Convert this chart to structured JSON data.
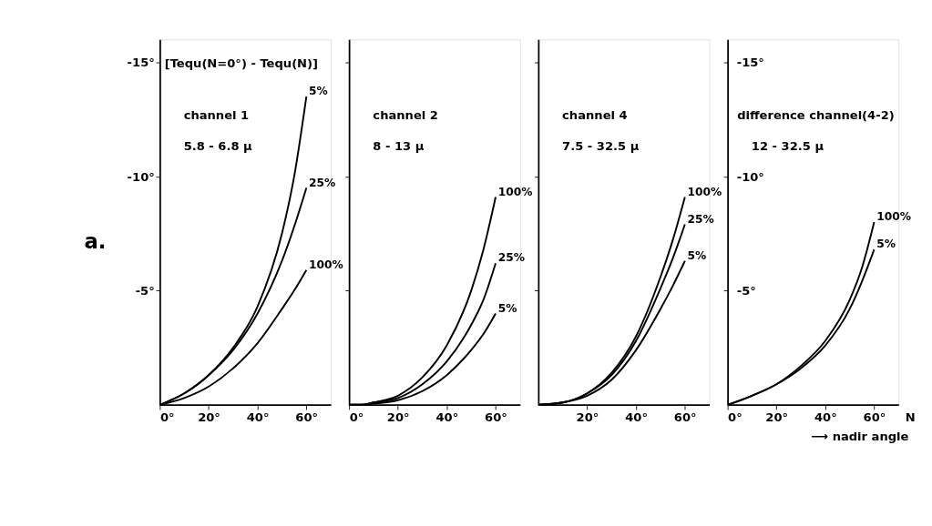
{
  "chart_data": [
    {
      "type": "line",
      "title": "channel 1",
      "subtitle": "5.8 - 6.8 μ",
      "ylabel": "[Tequ(N=0°) - Tequ(N)]",
      "annotations": [
        "a."
      ],
      "x": [
        0,
        10,
        20,
        30,
        40,
        50,
        55,
        60
      ],
      "xlim": [
        0,
        70
      ],
      "ylim": [
        0,
        -16
      ],
      "xticks": [
        {
          "value": 0,
          "label": "0°"
        },
        {
          "value": 20,
          "label": "20°"
        },
        {
          "value": 40,
          "label": "40°"
        },
        {
          "value": 60,
          "label": "60°"
        }
      ],
      "yticks": [
        {
          "value": -5,
          "label": "-5°"
        },
        {
          "value": -10,
          "label": "-10°"
        },
        {
          "value": -15,
          "label": "-15°"
        }
      ],
      "grid": false,
      "legend": false,
      "marker": "none",
      "line_style": "solid",
      "series": [
        {
          "name": "5%",
          "color": "#000000",
          "values": [
            0,
            -0.5,
            -1.3,
            -2.5,
            -4.3,
            -7.5,
            -10,
            -13.5
          ]
        },
        {
          "name": "25%",
          "color": "#000000",
          "values": [
            0,
            -0.5,
            -1.3,
            -2.4,
            -4.0,
            -6.3,
            -7.8,
            -9.5
          ]
        },
        {
          "name": "100%",
          "color": "#000000",
          "values": [
            0,
            -0.3,
            -0.8,
            -1.6,
            -2.7,
            -4.2,
            -5.0,
            -5.9
          ]
        }
      ]
    },
    {
      "type": "line",
      "title": "channel 2",
      "subtitle": "8 - 13 μ",
      "x": [
        0,
        5,
        10,
        20,
        30,
        40,
        50,
        55,
        60
      ],
      "xlim": [
        0,
        70
      ],
      "ylim": [
        0,
        -16
      ],
      "xticks": [
        {
          "value": 0,
          "label": "0°"
        },
        {
          "value": 20,
          "label": "20°"
        },
        {
          "value": 40,
          "label": "40°"
        },
        {
          "value": 60,
          "label": "60°"
        }
      ],
      "yticks": [
        {
          "value": -5,
          "label": null
        },
        {
          "value": -10,
          "label": null
        },
        {
          "value": -15,
          "label": null
        }
      ],
      "tick_labels": "x",
      "grid": false,
      "legend": false,
      "marker": "none",
      "line_style": "solid",
      "series": [
        {
          "name": "100%",
          "color": "#000000",
          "values": [
            0,
            0,
            -0.1,
            -0.4,
            -1.2,
            -2.6,
            -5.0,
            -6.8,
            -9.1
          ]
        },
        {
          "name": "25%",
          "color": "#000000",
          "values": [
            0,
            0,
            -0.1,
            -0.3,
            -0.9,
            -1.9,
            -3.5,
            -4.6,
            -6.2
          ]
        },
        {
          "name": "5%",
          "color": "#000000",
          "values": [
            0,
            0,
            -0.05,
            -0.2,
            -0.6,
            -1.3,
            -2.4,
            -3.1,
            -4.0
          ]
        }
      ]
    },
    {
      "type": "line",
      "title": "channel 4",
      "subtitle": "7.5 - 32.5 μ",
      "x": [
        0,
        10,
        20,
        30,
        40,
        50,
        55,
        60
      ],
      "xlim": [
        0,
        70
      ],
      "ylim": [
        0,
        -16
      ],
      "xticks": [
        {
          "value": 20,
          "label": "20°"
        },
        {
          "value": 40,
          "label": "40°"
        },
        {
          "value": 60,
          "label": "60°"
        }
      ],
      "yticks": [
        {
          "value": -5,
          "label": null
        },
        {
          "value": -10,
          "label": null
        },
        {
          "value": -15,
          "label": null
        }
      ],
      "tick_labels": "x",
      "grid": false,
      "legend": false,
      "marker": "none",
      "line_style": "solid",
      "series": [
        {
          "name": "100%",
          "color": "#000000",
          "values": [
            0,
            -0.1,
            -0.5,
            -1.4,
            -3.0,
            -5.6,
            -7.2,
            -9.1
          ]
        },
        {
          "name": "25%",
          "color": "#000000",
          "values": [
            0,
            -0.1,
            -0.5,
            -1.3,
            -2.8,
            -5.1,
            -6.4,
            -7.9
          ]
        },
        {
          "name": "5%",
          "color": "#000000",
          "values": [
            0,
            -0.1,
            -0.4,
            -1.1,
            -2.4,
            -4.2,
            -5.2,
            -6.3
          ]
        }
      ]
    },
    {
      "type": "line",
      "title": "difference channel(4-2)",
      "subtitle": "12 - 32.5 μ",
      "xlabel": "N",
      "annotations": [
        "⟶ nadir angle"
      ],
      "x": [
        0,
        10,
        20,
        30,
        40,
        50,
        55,
        60
      ],
      "xlim": [
        0,
        70
      ],
      "ylim": [
        0,
        -16
      ],
      "xticks": [
        {
          "value": 0,
          "label": "0°"
        },
        {
          "value": 20,
          "label": "20°"
        },
        {
          "value": 40,
          "label": "40°"
        },
        {
          "value": 60,
          "label": "60°"
        }
      ],
      "yticks": [
        {
          "value": -5,
          "label": "-5°"
        },
        {
          "value": -10,
          "label": "-10°"
        },
        {
          "value": -15,
          "label": "-15°"
        }
      ],
      "grid": false,
      "legend": false,
      "marker": "none",
      "line_style": "solid",
      "series": [
        {
          "name": "100%",
          "color": "#000000",
          "values": [
            0,
            -0.4,
            -0.9,
            -1.7,
            -2.8,
            -4.6,
            -6.0,
            -8.0
          ]
        },
        {
          "name": "5%",
          "color": "#000000",
          "values": [
            0,
            -0.4,
            -0.9,
            -1.6,
            -2.6,
            -4.2,
            -5.4,
            -6.8
          ]
        }
      ]
    }
  ]
}
